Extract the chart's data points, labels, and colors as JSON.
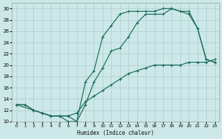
{
  "xlabel": "Humidex (Indice chaleur)",
  "bg_color": "#cce8e8",
  "grid_color": "#aacccc",
  "line_color": "#1a6b5a",
  "xlim": [
    -0.5,
    23.5
  ],
  "ylim": [
    10,
    31
  ],
  "xticks": [
    0,
    1,
    2,
    3,
    4,
    5,
    6,
    7,
    8,
    9,
    10,
    11,
    12,
    13,
    14,
    15,
    16,
    17,
    18,
    19,
    20,
    21,
    22,
    23
  ],
  "yticks": [
    10,
    12,
    14,
    16,
    18,
    20,
    22,
    24,
    26,
    28,
    30
  ],
  "line1_x": [
    0,
    1,
    2,
    3,
    4,
    5,
    6,
    7,
    8,
    9,
    10,
    11,
    12,
    13,
    14,
    15,
    16,
    17,
    18,
    19,
    20,
    21,
    22,
    23
  ],
  "line1_y": [
    13,
    13,
    12,
    11.5,
    11,
    11,
    11,
    11.5,
    13.5,
    14.5,
    15.5,
    16.5,
    17.5,
    18.5,
    19,
    19.5,
    20,
    20,
    20,
    20,
    20.5,
    20.5,
    20.5,
    21
  ],
  "line2_x": [
    0,
    2,
    3,
    4,
    5,
    6,
    7,
    8,
    9,
    10,
    11,
    12,
    13,
    14,
    15,
    16,
    17,
    18,
    19,
    20,
    21,
    22,
    23
  ],
  "line2_y": [
    13,
    12,
    11.5,
    11,
    11,
    11,
    10,
    13,
    17,
    19.5,
    22.5,
    23,
    25,
    27.5,
    29,
    29,
    29,
    30,
    29.5,
    29,
    26.5,
    21,
    20.5
  ],
  "line3_x": [
    0,
    1,
    2,
    3,
    4,
    5,
    6,
    7,
    8,
    9,
    10,
    11,
    12,
    13,
    14,
    15,
    16,
    17,
    18,
    19,
    20,
    21,
    22,
    23
  ],
  "line3_y": [
    13,
    13,
    12,
    11.5,
    11,
    11,
    10,
    10,
    17,
    19,
    25,
    27,
    29,
    29.5,
    29.5,
    29.5,
    29.5,
    30,
    30,
    29.5,
    29.5,
    26.5,
    21,
    20.5
  ]
}
